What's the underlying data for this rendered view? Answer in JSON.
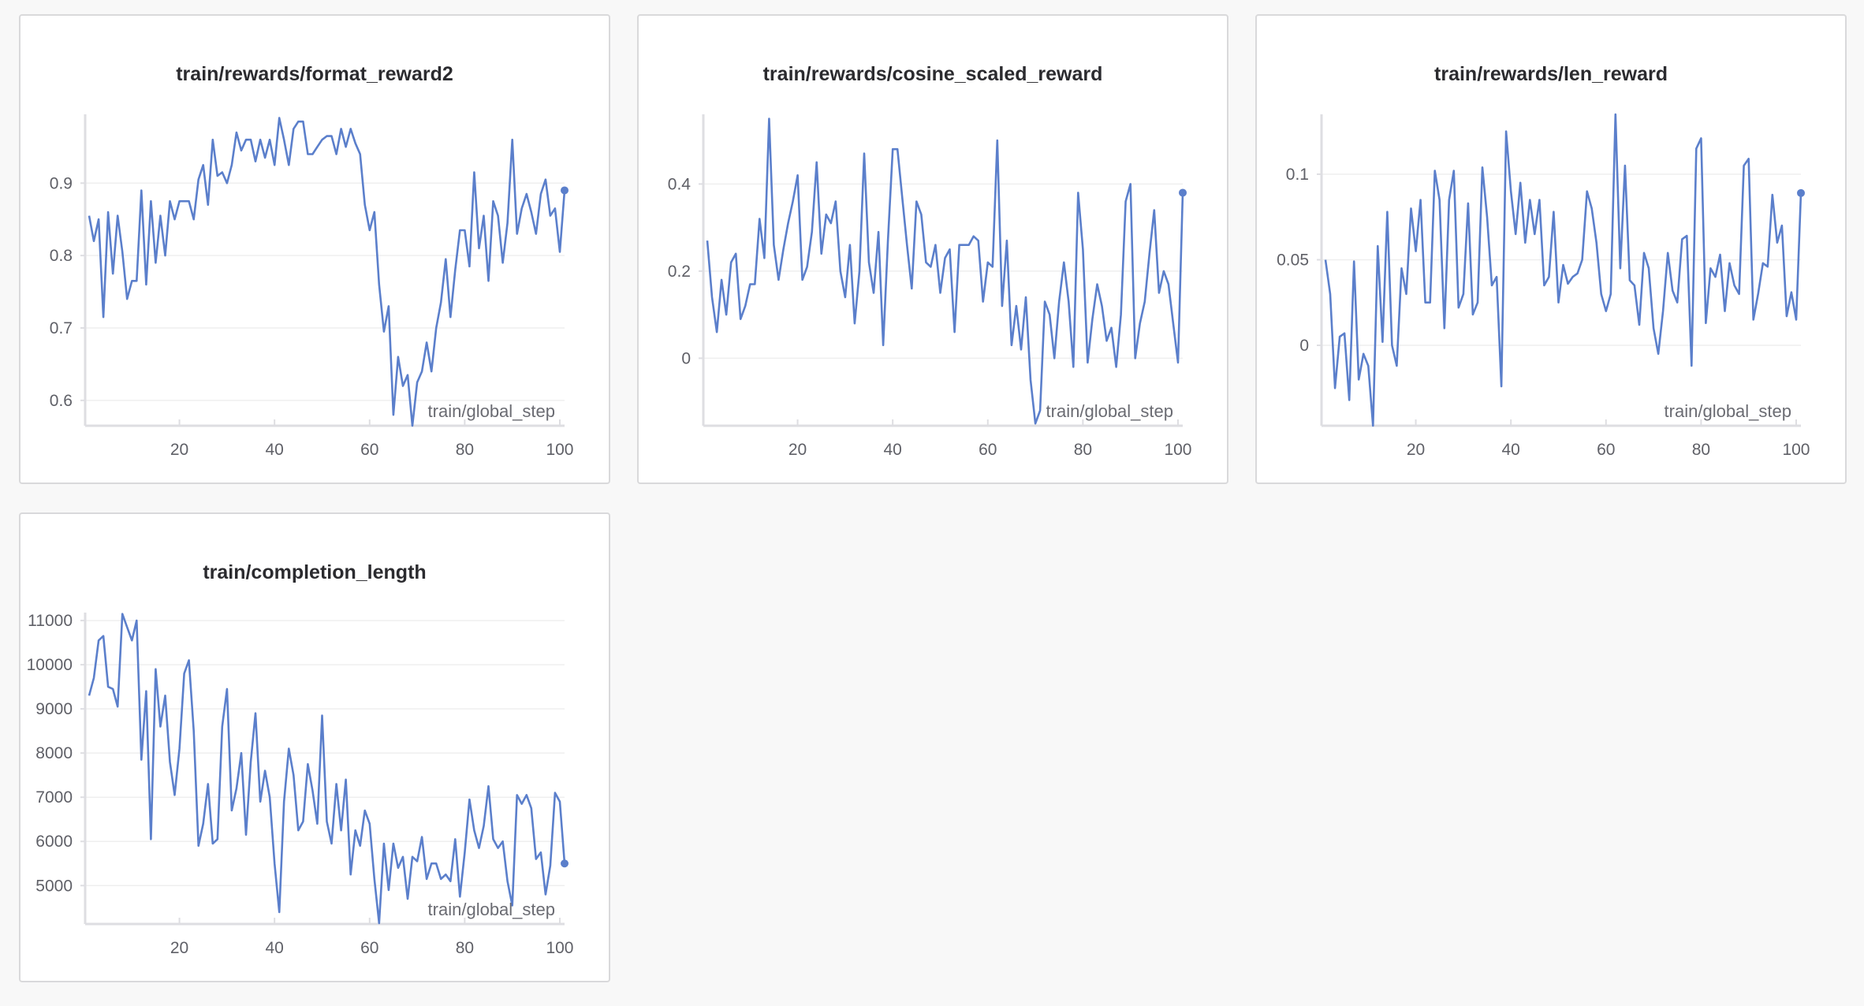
{
  "colors": {
    "line": "#5b7fcb",
    "axis": "#dedee2",
    "grid": "#efefef",
    "text": "#5f6067"
  },
  "chart_data": [
    {
      "type": "line",
      "title": "train/rewards/format_reward2",
      "xlabel": "train/global_step",
      "ylabel": "",
      "xlim": [
        1,
        101
      ],
      "ylim": [
        0.565,
        0.995
      ],
      "xticks": [
        20,
        40,
        60,
        80,
        100
      ],
      "yticks": [
        0.6,
        0.7,
        0.8,
        0.9
      ],
      "ytick_labels": [
        "0.6",
        "0.7",
        "0.8",
        "0.9"
      ],
      "grid": true,
      "end_marker": true,
      "series": [
        {
          "x": [
            1,
            2,
            3,
            4,
            5,
            6,
            7,
            8,
            9,
            10,
            11,
            12,
            13,
            14,
            15,
            16,
            17,
            18,
            19,
            20,
            21,
            22,
            23,
            24,
            25,
            26,
            27,
            28,
            29,
            30,
            31,
            32,
            33,
            34,
            35,
            36,
            37,
            38,
            39,
            40,
            41,
            42,
            43,
            44,
            45,
            46,
            47,
            48,
            49,
            50,
            51,
            52,
            53,
            54,
            55,
            56,
            57,
            58,
            59,
            60,
            61,
            62,
            63,
            64,
            65,
            66,
            67,
            68,
            69,
            70,
            71,
            72,
            73,
            74,
            75,
            76,
            77,
            78,
            79,
            80,
            81,
            82,
            83,
            84,
            85,
            86,
            87,
            88,
            89,
            90,
            91,
            92,
            93,
            94,
            95,
            96,
            97,
            98,
            99,
            100,
            101
          ],
          "y": [
            0.855,
            0.82,
            0.85,
            0.715,
            0.86,
            0.775,
            0.855,
            0.805,
            0.74,
            0.765,
            0.765,
            0.89,
            0.76,
            0.875,
            0.79,
            0.855,
            0.8,
            0.875,
            0.85,
            0.875,
            0.875,
            0.875,
            0.85,
            0.905,
            0.925,
            0.87,
            0.96,
            0.91,
            0.915,
            0.9,
            0.925,
            0.97,
            0.945,
            0.96,
            0.96,
            0.93,
            0.96,
            0.935,
            0.96,
            0.925,
            0.99,
            0.96,
            0.925,
            0.975,
            0.985,
            0.985,
            0.94,
            0.94,
            0.95,
            0.96,
            0.965,
            0.965,
            0.94,
            0.975,
            0.95,
            0.975,
            0.955,
            0.94,
            0.87,
            0.835,
            0.86,
            0.76,
            0.695,
            0.73,
            0.58,
            0.66,
            0.62,
            0.635,
            0.565,
            0.625,
            0.64,
            0.68,
            0.64,
            0.7,
            0.735,
            0.795,
            0.715,
            0.78,
            0.835,
            0.835,
            0.785,
            0.915,
            0.81,
            0.855,
            0.765,
            0.875,
            0.855,
            0.79,
            0.845,
            0.96,
            0.83,
            0.865,
            0.885,
            0.86,
            0.83,
            0.885,
            0.905,
            0.855,
            0.865,
            0.805,
            0.89
          ]
        }
      ]
    },
    {
      "type": "line",
      "title": "train/rewards/cosine_scaled_reward",
      "xlabel": "train/global_step",
      "ylabel": "",
      "xlim": [
        1,
        101
      ],
      "ylim": [
        -0.155,
        0.56
      ],
      "xticks": [
        20,
        40,
        60,
        80,
        100
      ],
      "yticks": [
        0,
        0.2,
        0.4
      ],
      "ytick_labels": [
        "0",
        "0.2",
        "0.4"
      ],
      "grid": true,
      "end_marker": true,
      "series": [
        {
          "x": [
            1,
            2,
            3,
            4,
            5,
            6,
            7,
            8,
            9,
            10,
            11,
            12,
            13,
            14,
            15,
            16,
            17,
            18,
            19,
            20,
            21,
            22,
            23,
            24,
            25,
            26,
            27,
            28,
            29,
            30,
            31,
            32,
            33,
            34,
            35,
            36,
            37,
            38,
            39,
            40,
            41,
            42,
            43,
            44,
            45,
            46,
            47,
            48,
            49,
            50,
            51,
            52,
            53,
            54,
            55,
            56,
            57,
            58,
            59,
            60,
            61,
            62,
            63,
            64,
            65,
            66,
            67,
            68,
            69,
            70,
            71,
            72,
            73,
            74,
            75,
            76,
            77,
            78,
            79,
            80,
            81,
            82,
            83,
            84,
            85,
            86,
            87,
            88,
            89,
            90,
            91,
            92,
            93,
            94,
            95,
            96,
            97,
            98,
            99,
            100,
            101
          ],
          "y": [
            0.27,
            0.14,
            0.06,
            0.18,
            0.1,
            0.22,
            0.24,
            0.09,
            0.12,
            0.17,
            0.17,
            0.32,
            0.23,
            0.55,
            0.26,
            0.18,
            0.25,
            0.31,
            0.36,
            0.42,
            0.18,
            0.21,
            0.29,
            0.45,
            0.24,
            0.33,
            0.31,
            0.36,
            0.2,
            0.14,
            0.26,
            0.08,
            0.2,
            0.47,
            0.22,
            0.15,
            0.29,
            0.03,
            0.27,
            0.48,
            0.48,
            0.37,
            0.26,
            0.16,
            0.36,
            0.33,
            0.22,
            0.21,
            0.26,
            0.15,
            0.23,
            0.25,
            0.06,
            0.26,
            0.26,
            0.26,
            0.28,
            0.27,
            0.13,
            0.22,
            0.21,
            0.5,
            0.12,
            0.27,
            0.03,
            0.12,
            0.02,
            0.14,
            -0.05,
            -0.15,
            -0.12,
            0.13,
            0.1,
            0.0,
            0.13,
            0.22,
            0.13,
            -0.02,
            0.38,
            0.25,
            -0.01,
            0.09,
            0.17,
            0.12,
            0.04,
            0.07,
            -0.02,
            0.1,
            0.36,
            0.4,
            0.0,
            0.08,
            0.13,
            0.24,
            0.34,
            0.15,
            0.2,
            0.17,
            0.08,
            -0.01,
            0.38
          ]
        }
      ]
    },
    {
      "type": "line",
      "title": "train/rewards/len_reward",
      "xlabel": "train/global_step",
      "ylabel": "",
      "xlim": [
        1,
        101
      ],
      "ylim": [
        -0.047,
        0.135
      ],
      "xticks": [
        20,
        40,
        60,
        80,
        100
      ],
      "yticks": [
        0,
        0.05,
        0.1
      ],
      "ytick_labels": [
        "0",
        "0.05",
        "0.1"
      ],
      "grid": true,
      "end_marker": true,
      "series": [
        {
          "x": [
            1,
            2,
            3,
            4,
            5,
            6,
            7,
            8,
            9,
            10,
            11,
            12,
            13,
            14,
            15,
            16,
            17,
            18,
            19,
            20,
            21,
            22,
            23,
            24,
            25,
            26,
            27,
            28,
            29,
            30,
            31,
            32,
            33,
            34,
            35,
            36,
            37,
            38,
            39,
            40,
            41,
            42,
            43,
            44,
            45,
            46,
            47,
            48,
            49,
            50,
            51,
            52,
            53,
            54,
            55,
            56,
            57,
            58,
            59,
            60,
            61,
            62,
            63,
            64,
            65,
            66,
            67,
            68,
            69,
            70,
            71,
            72,
            73,
            74,
            75,
            76,
            77,
            78,
            79,
            80,
            81,
            82,
            83,
            84,
            85,
            86,
            87,
            88,
            89,
            90,
            91,
            92,
            93,
            94,
            95,
            96,
            97,
            98,
            99,
            100,
            101
          ],
          "y": [
            0.05,
            0.03,
            -0.025,
            0.005,
            0.007,
            -0.032,
            0.049,
            -0.02,
            -0.005,
            -0.012,
            -0.047,
            0.058,
            0.002,
            0.078,
            0.0,
            -0.012,
            0.045,
            0.03,
            0.08,
            0.055,
            0.085,
            0.025,
            0.025,
            0.102,
            0.085,
            0.01,
            0.085,
            0.102,
            0.022,
            0.03,
            0.083,
            0.018,
            0.025,
            0.104,
            0.075,
            0.035,
            0.04,
            -0.024,
            0.125,
            0.09,
            0.065,
            0.095,
            0.06,
            0.085,
            0.065,
            0.085,
            0.035,
            0.04,
            0.078,
            0.025,
            0.047,
            0.036,
            0.04,
            0.042,
            0.05,
            0.09,
            0.08,
            0.06,
            0.03,
            0.02,
            0.03,
            0.135,
            0.045,
            0.105,
            0.038,
            0.035,
            0.012,
            0.054,
            0.045,
            0.01,
            -0.005,
            0.02,
            0.054,
            0.032,
            0.025,
            0.062,
            0.064,
            -0.012,
            0.115,
            0.121,
            0.013,
            0.045,
            0.04,
            0.053,
            0.02,
            0.048,
            0.035,
            0.03,
            0.105,
            0.109,
            0.015,
            0.03,
            0.048,
            0.046,
            0.088,
            0.06,
            0.07,
            0.017,
            0.031,
            0.015,
            0.089
          ]
        }
      ]
    },
    {
      "type": "line",
      "title": "train/completion_length",
      "xlabel": "train/global_step",
      "ylabel": "",
      "xlim": [
        1,
        101
      ],
      "ylim": [
        4130,
        11180
      ],
      "xticks": [
        20,
        40,
        60,
        80,
        100
      ],
      "yticks": [
        5000,
        6000,
        7000,
        8000,
        9000,
        10000,
        11000
      ],
      "ytick_labels": [
        "5000",
        "6000",
        "7000",
        "8000",
        "9000",
        "10000",
        "11000"
      ],
      "grid": true,
      "end_marker": true,
      "series": [
        {
          "x": [
            1,
            2,
            3,
            4,
            5,
            6,
            7,
            8,
            9,
            10,
            11,
            12,
            13,
            14,
            15,
            16,
            17,
            18,
            19,
            20,
            21,
            22,
            23,
            24,
            25,
            26,
            27,
            28,
            29,
            30,
            31,
            32,
            33,
            34,
            35,
            36,
            37,
            38,
            39,
            40,
            41,
            42,
            43,
            44,
            45,
            46,
            47,
            48,
            49,
            50,
            51,
            52,
            53,
            54,
            55,
            56,
            57,
            58,
            59,
            60,
            61,
            62,
            63,
            64,
            65,
            66,
            67,
            68,
            69,
            70,
            71,
            72,
            73,
            74,
            75,
            76,
            77,
            78,
            79,
            80,
            81,
            82,
            83,
            84,
            85,
            86,
            87,
            88,
            89,
            90,
            91,
            92,
            93,
            94,
            95,
            96,
            97,
            98,
            99,
            100,
            101
          ],
          "y": [
            9300,
            9700,
            10550,
            10650,
            9500,
            9450,
            9050,
            11150,
            10850,
            10550,
            11000,
            7850,
            9400,
            6050,
            9900,
            8600,
            9300,
            7800,
            7050,
            8100,
            9800,
            10100,
            8500,
            5900,
            6400,
            7300,
            5950,
            6050,
            8600,
            9450,
            6700,
            7200,
            8000,
            6150,
            7800,
            8900,
            6900,
            7600,
            7000,
            5500,
            4400,
            6900,
            8100,
            7500,
            6250,
            6450,
            7750,
            7150,
            6400,
            8850,
            6450,
            5950,
            7300,
            6250,
            7400,
            5250,
            6250,
            5900,
            6700,
            6400,
            5150,
            4150,
            5950,
            4900,
            5950,
            5400,
            5650,
            4700,
            5650,
            5550,
            6100,
            5150,
            5500,
            5500,
            5150,
            5250,
            5100,
            6050,
            4750,
            5750,
            6950,
            6250,
            5850,
            6350,
            7250,
            6050,
            5850,
            6000,
            5100,
            4550,
            7050,
            6850,
            7050,
            6750,
            5600,
            5750,
            4800,
            5450,
            7100,
            6900,
            5500
          ]
        }
      ]
    }
  ]
}
